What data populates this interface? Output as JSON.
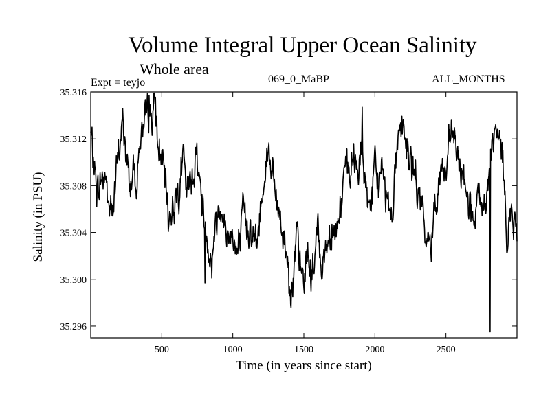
{
  "chart_data": {
    "type": "line",
    "title": "Volume Integral Upper Ocean Salinity",
    "subtitle": "Whole area",
    "experiment_label": "Expt = teyjo",
    "run_label": "069_0_MaBP",
    "months_label": "ALL_MONTHS",
    "xlabel": "Time (in years since start)",
    "ylabel": "Salinity (in PSU)",
    "xlim": [
      0,
      3000
    ],
    "ylim": [
      35.295,
      35.316
    ],
    "x_ticks": [
      500,
      1000,
      1500,
      2000,
      2500
    ],
    "y_ticks": [
      35.296,
      35.3,
      35.304,
      35.308,
      35.312,
      35.316
    ],
    "y_tick_labels": [
      "35.296",
      "35.300",
      "35.304",
      "35.308",
      "35.312",
      "35.316"
    ],
    "grid": false,
    "series": [
      {
        "name": "salinity",
        "color": "#000000",
        "x": [
          0,
          25,
          50,
          75,
          100,
          125,
          150,
          175,
          200,
          225,
          250,
          275,
          300,
          325,
          350,
          375,
          400,
          425,
          450,
          475,
          500,
          525,
          550,
          575,
          600,
          625,
          650,
          675,
          700,
          725,
          750,
          775,
          800,
          825,
          850,
          875,
          900,
          925,
          950,
          975,
          1000,
          1025,
          1050,
          1075,
          1100,
          1125,
          1150,
          1175,
          1200,
          1225,
          1250,
          1275,
          1300,
          1325,
          1350,
          1375,
          1400,
          1425,
          1450,
          1475,
          1500,
          1525,
          1550,
          1575,
          1600,
          1625,
          1650,
          1675,
          1700,
          1725,
          1750,
          1775,
          1800,
          1825,
          1850,
          1875,
          1900,
          1925,
          1950,
          1975,
          2000,
          2025,
          2050,
          2075,
          2100,
          2125,
          2150,
          2175,
          2200,
          2225,
          2250,
          2275,
          2300,
          2325,
          2350,
          2375,
          2400,
          2425,
          2450,
          2475,
          2500,
          2525,
          2550,
          2575,
          2600,
          2625,
          2650,
          2675,
          2700,
          2725,
          2750,
          2775,
          2800,
          2825,
          2850,
          2875,
          2900,
          2925,
          2950,
          2975,
          3000
        ],
        "values": [
          35.3125,
          35.3095,
          35.3075,
          35.3085,
          35.309,
          35.3065,
          35.3055,
          35.3085,
          35.311,
          35.3135,
          35.3105,
          35.308,
          35.3095,
          35.3085,
          35.3125,
          35.312,
          35.3145,
          35.3135,
          35.3155,
          35.311,
          35.3105,
          35.308,
          35.3052,
          35.3062,
          35.3072,
          35.308,
          35.3105,
          35.307,
          35.3082,
          35.3095,
          35.3108,
          35.3075,
          35.305,
          35.3035,
          35.3012,
          35.3045,
          35.3058,
          35.307,
          35.3035,
          35.304,
          35.3042,
          35.302,
          35.3028,
          35.3055,
          35.3045,
          35.3048,
          35.3035,
          35.303,
          35.3068,
          35.3095,
          35.3112,
          35.3095,
          35.307,
          35.3058,
          35.3042,
          35.303,
          35.3,
          35.2995,
          35.3035,
          35.301,
          35.2995,
          35.3025,
          35.3005,
          35.3015,
          35.3045,
          35.3012,
          35.3025,
          35.3035,
          35.305,
          35.304,
          35.3055,
          35.3078,
          35.3095,
          35.3085,
          35.3105,
          35.3095,
          35.311,
          35.3085,
          35.3072,
          35.3062,
          35.3092,
          35.3082,
          35.3098,
          35.3075,
          35.3068,
          35.3058,
          35.3108,
          35.3135,
          35.3128,
          35.3112,
          35.3098,
          35.3088,
          35.3078,
          35.3062,
          35.3042,
          35.3025,
          35.3035,
          35.3068,
          35.3085,
          35.3098,
          35.3088,
          35.3112,
          35.3128,
          35.3108,
          35.3085,
          35.3095,
          35.3075,
          35.3058,
          35.3042,
          35.3068,
          35.3055,
          35.3065,
          35.3082,
          35.3112,
          35.3125,
          35.3115,
          35.3105,
          35.3042,
          35.3055,
          35.3048,
          35.3038
        ],
        "extrema_samples": [
          {
            "x": 410,
            "y": 35.3157
          },
          {
            "x": 1910,
            "y": 35.3147
          },
          {
            "x": 1395,
            "y": 35.2988
          },
          {
            "x": 805,
            "y": 35.2997
          },
          {
            "x": 2810,
            "y": 35.2955
          }
        ]
      }
    ]
  }
}
